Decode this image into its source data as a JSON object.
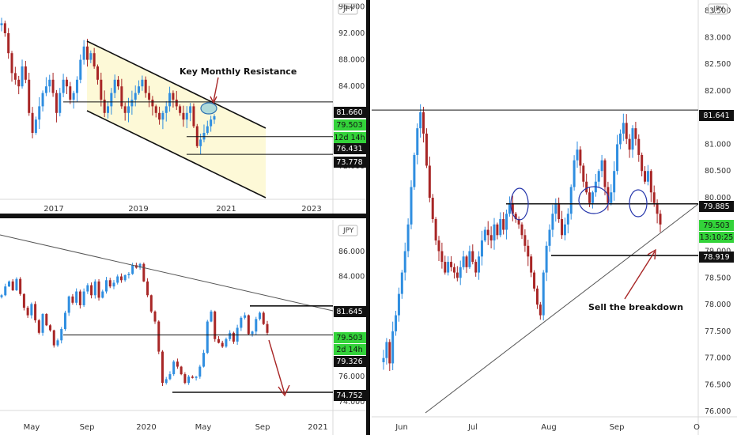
{
  "colors": {
    "up": "#2f8ee0",
    "down": "#a82626",
    "green": "#33d33a",
    "black": "#111111",
    "channel": "#fdf9d7"
  },
  "chart_data": [
    {
      "id": "monthly",
      "type": "candlestick",
      "currency": "JPY",
      "y_ticks": [
        "96.000",
        "92.000",
        "88.000",
        "84.000",
        "72.000"
      ],
      "x_ticks": [
        "2017",
        "2019",
        "2021",
        "2023"
      ],
      "annotation": "Key Monthly Resistance",
      "levels": [
        {
          "value": 81.66,
          "label": "81.660",
          "style": "black"
        },
        {
          "value": 79.503,
          "label": "79.503",
          "style": "green"
        },
        {
          "label": "12d 14h",
          "style": "green"
        },
        {
          "value": 76.431,
          "label": "76.431",
          "style": "black"
        },
        {
          "value": 73.778,
          "label": "73.778",
          "style": "black"
        }
      ],
      "ylim": [
        67,
        97
      ],
      "closes": [
        93.5,
        92,
        89,
        86,
        85,
        84,
        87,
        85,
        80,
        77,
        79,
        81,
        83,
        84,
        85,
        83,
        80,
        83,
        85,
        84,
        82,
        83,
        85,
        88,
        90,
        88,
        89,
        87,
        85,
        82,
        80,
        81,
        83,
        85,
        84,
        81,
        80,
        81,
        82,
        83,
        84,
        85,
        83,
        82,
        81,
        80,
        79,
        80,
        81,
        83,
        82,
        81,
        80,
        79,
        80,
        81,
        78,
        75,
        76,
        77,
        78,
        79,
        79.5
      ]
    },
    {
      "id": "daily",
      "type": "candlestick",
      "currency": "JPY",
      "y_ticks": [
        "83.500",
        "83.000",
        "82.500",
        "82.000",
        "81.500",
        "81.000",
        "80.500",
        "80.000",
        "79.500",
        "79.000",
        "78.500",
        "78.000",
        "77.500",
        "77.000",
        "76.500",
        "76.000"
      ],
      "x_ticks": [
        "Jun",
        "Jul",
        "Aug",
        "Sep",
        "O"
      ],
      "annotation": "Sell the breakdown",
      "levels": [
        {
          "value": 81.641,
          "label": "81.641",
          "style": "black"
        },
        {
          "value": 79.885,
          "label": "79.885",
          "style": "black"
        },
        {
          "value": 79.503,
          "label": "79.503",
          "style": "green"
        },
        {
          "label": "13:10:25",
          "style": "green"
        },
        {
          "value": 78.919,
          "label": "78.919",
          "style": "black"
        }
      ],
      "ylim": [
        75.9,
        83.7
      ],
      "closes": [
        77.0,
        77.3,
        76.9,
        77.5,
        77.8,
        78.2,
        78.6,
        79.0,
        79.5,
        80.2,
        80.8,
        81.3,
        81.6,
        81.2,
        80.6,
        80.0,
        79.6,
        79.2,
        79.0,
        78.8,
        78.6,
        78.8,
        78.7,
        78.6,
        78.5,
        78.7,
        78.9,
        78.7,
        79.0,
        78.8,
        78.6,
        78.9,
        79.2,
        79.4,
        79.3,
        79.2,
        79.5,
        79.3,
        79.6,
        79.4,
        79.7,
        79.9,
        79.7,
        79.6,
        79.5,
        79.3,
        79.1,
        78.9,
        78.6,
        78.3,
        78.0,
        77.8,
        78.6,
        79.1,
        79.4,
        79.7,
        79.9,
        79.6,
        79.3,
        79.5,
        79.7,
        80.2,
        80.7,
        80.9,
        80.6,
        80.3,
        80.1,
        79.9,
        80.1,
        80.3,
        80.5,
        80.7,
        80.2,
        79.9,
        80.1,
        80.5,
        81.0,
        81.2,
        81.4,
        81.1,
        80.9,
        81.3,
        81.1,
        80.8,
        80.5,
        80.3,
        80.5,
        80.1,
        79.9,
        79.7,
        79.5
      ]
    },
    {
      "id": "weekly",
      "type": "candlestick",
      "currency": "JPY",
      "y_ticks": [
        "86.000",
        "84.000",
        "76.000",
        "74.000"
      ],
      "x_ticks": [
        "May",
        "Sep",
        "2020",
        "May",
        "Sep",
        "2021"
      ],
      "levels": [
        {
          "value": 81.645,
          "label": "81.645",
          "style": "black"
        },
        {
          "value": 79.503,
          "label": "79.503",
          "style": "green"
        },
        {
          "label": "2d 14h",
          "style": "green"
        },
        {
          "value": 79.326,
          "label": "79.326",
          "style": "black"
        },
        {
          "value": 74.752,
          "label": "74.752",
          "style": "black"
        }
      ],
      "ylim": [
        73.3,
        88.2
      ],
      "closes": [
        82.5,
        83.2,
        83.6,
        82.9,
        83.8,
        82.6,
        81.5,
        80.9,
        81.8,
        80.5,
        79.5,
        81.0,
        80.1,
        79.7,
        78.5,
        78.9,
        79.8,
        81.1,
        82.4,
        81.9,
        82.8,
        81.7,
        82.8,
        83.3,
        82.5,
        83.6,
        82.3,
        82.8,
        83.7,
        83.2,
        83.5,
        84.0,
        83.7,
        84.1,
        84.2,
        84.9,
        84.7,
        85.0,
        83.6,
        82.5,
        81.2,
        80.4,
        78.0,
        75.5,
        75.8,
        76.2,
        77.2,
        76.8,
        76.2,
        75.5,
        76.0,
        75.9,
        76.0,
        76.8,
        77.9,
        80.4,
        81.2,
        79.0,
        78.7,
        78.4,
        79.0,
        79.5,
        78.8,
        79.9,
        80.7,
        80.9,
        79.4,
        79.6,
        80.6,
        81.1,
        80.2,
        79.5
      ]
    }
  ]
}
